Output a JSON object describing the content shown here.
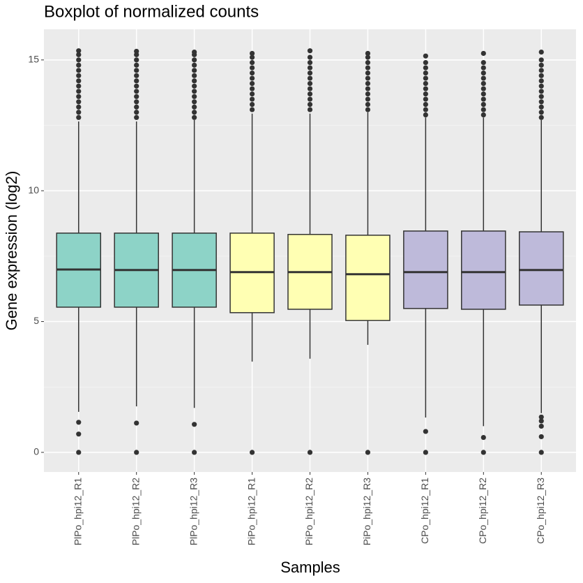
{
  "chart_data": {
    "type": "box",
    "title": "Boxplot of normalized counts",
    "x_label": "Samples",
    "y_label": "Gene expression (log2)",
    "categories": [
      "PlPo_hpi12_R1",
      "PlPo_hpi12_R2",
      "PlPo_hpi12_R3",
      "PiPo_hpi12_R1",
      "PiPo_hpi12_R2",
      "PiPo_hpi12_R3",
      "CPo_hpi12_R1",
      "CPo_hpi12_R2",
      "CPo_hpi12_R3"
    ],
    "colors": [
      "#8dd3c7",
      "#8dd3c7",
      "#8dd3c7",
      "#ffffb3",
      "#ffffb3",
      "#ffffb3",
      "#bebada",
      "#bebada",
      "#bebada"
    ],
    "whisker_low": [
      1.55,
      1.76,
      1.7,
      3.47,
      3.58,
      4.11,
      1.33,
      1.0,
      1.5
    ],
    "q1": [
      5.55,
      5.55,
      5.55,
      5.34,
      5.47,
      5.04,
      5.5,
      5.47,
      5.63
    ],
    "median": [
      6.99,
      6.97,
      6.97,
      6.89,
      6.89,
      6.81,
      6.89,
      6.89,
      6.97
    ],
    "q3": [
      8.38,
      8.38,
      8.38,
      8.38,
      8.33,
      8.3,
      8.46,
      8.46,
      8.43
    ],
    "whisker_high": [
      12.65,
      12.65,
      12.7,
      12.95,
      12.95,
      13.0,
      12.8,
      12.8,
      12.7
    ],
    "outliers": [
      [
        0,
        0.7,
        1.15,
        12.8,
        13.0,
        13.2,
        13.4,
        13.6,
        13.8,
        14.0,
        14.2,
        14.4,
        14.6,
        14.8,
        15.0,
        15.2,
        15.35
      ],
      [
        0,
        1.12,
        12.8,
        13.0,
        13.2,
        13.4,
        13.6,
        13.8,
        14.0,
        14.2,
        14.4,
        14.6,
        14.8,
        15.0,
        15.2,
        15.33
      ],
      [
        0,
        1.07,
        12.8,
        13.0,
        13.2,
        13.4,
        13.6,
        13.8,
        14.0,
        14.2,
        14.4,
        14.6,
        14.8,
        15.0,
        15.2,
        15.3
      ],
      [
        0,
        13.1,
        13.3,
        13.5,
        13.7,
        13.9,
        14.1,
        14.3,
        14.5,
        14.7,
        14.9,
        15.1,
        15.25
      ],
      [
        0,
        13.1,
        13.3,
        13.5,
        13.7,
        13.9,
        14.1,
        14.3,
        14.5,
        14.7,
        14.9,
        15.1,
        15.35
      ],
      [
        0,
        13.1,
        13.3,
        13.5,
        13.7,
        13.9,
        14.1,
        14.3,
        14.5,
        14.7,
        14.9,
        15.1,
        15.25
      ],
      [
        0,
        0.8,
        12.9,
        13.1,
        13.3,
        13.5,
        13.7,
        13.9,
        14.1,
        14.3,
        14.5,
        14.7,
        14.9,
        15.15
      ],
      [
        0,
        0.57,
        12.9,
        13.1,
        13.3,
        13.5,
        13.7,
        13.9,
        14.1,
        14.3,
        14.5,
        14.7,
        14.9,
        15.25
      ],
      [
        0,
        0.6,
        1.0,
        1.2,
        1.35,
        12.8,
        13.0,
        13.2,
        13.4,
        13.6,
        13.8,
        14.0,
        14.2,
        14.4,
        14.6,
        14.8,
        15.0,
        15.3
      ]
    ],
    "ylim": [
      -0.75,
      16.17
    ],
    "yticks": [
      0,
      5,
      10,
      15
    ],
    "minor_yticks": [
      2.5,
      7.5,
      12.5
    ],
    "grid": true
  }
}
